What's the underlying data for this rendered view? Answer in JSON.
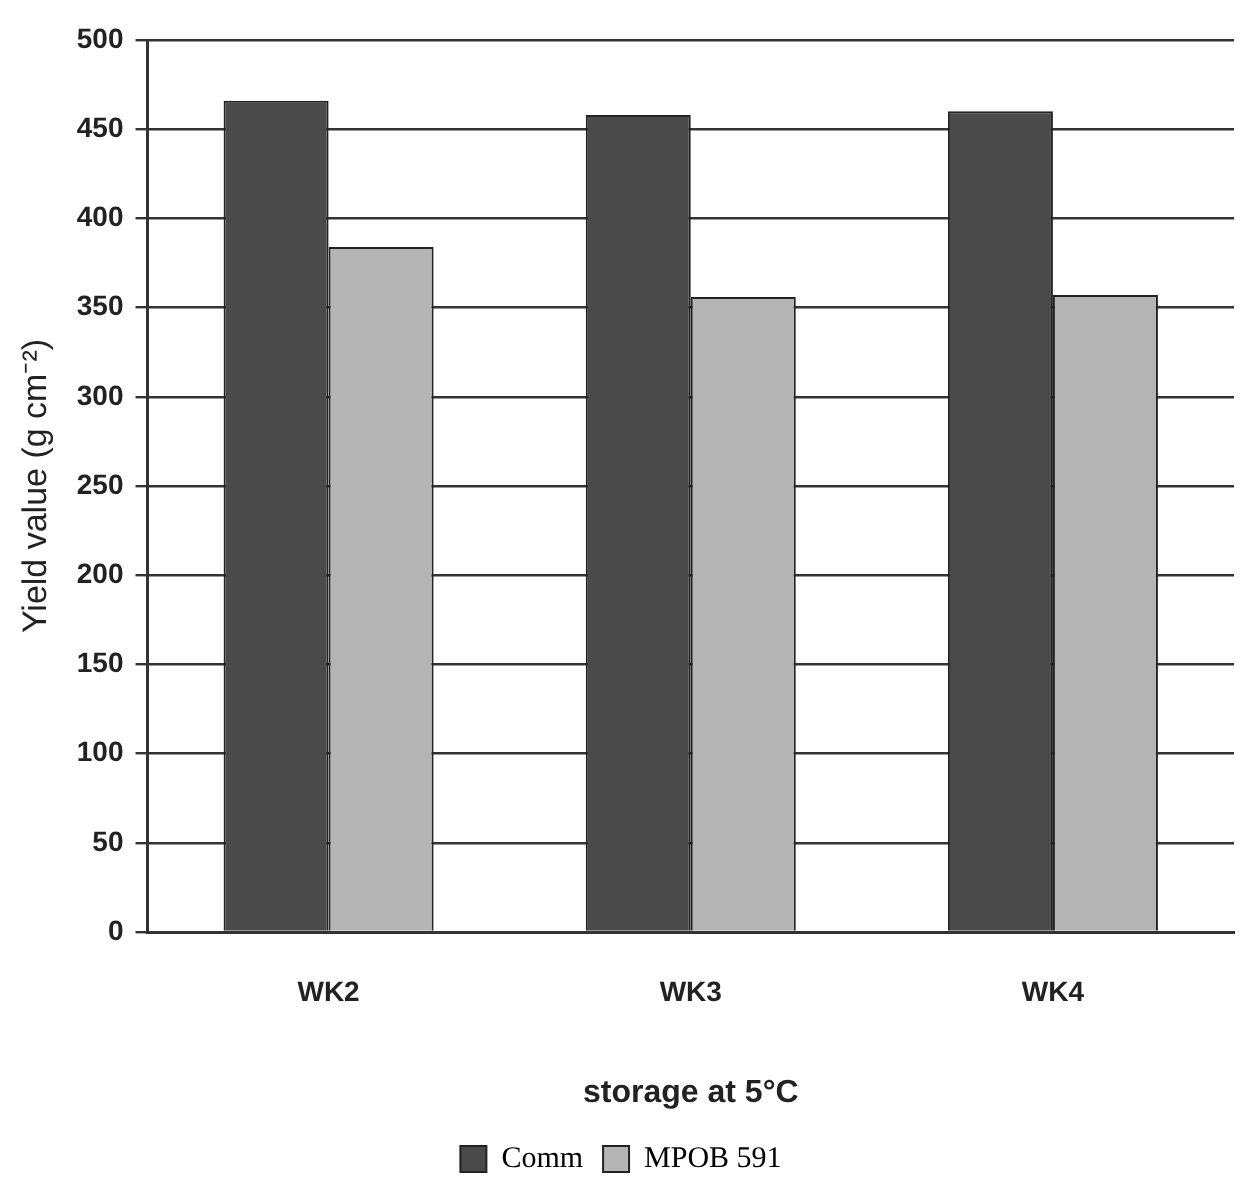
{
  "chart_data": {
    "type": "bar",
    "xlabel": "storage at 5°C",
    "ylabel": "Yield value (g cm⁻²)",
    "categories": [
      "WK2",
      "WK3",
      "WK4"
    ],
    "series": [
      {
        "name": "Comm",
        "color": "#4a4a4a",
        "values": [
          466,
          458,
          460
        ]
      },
      {
        "name": "MPOB 591",
        "color": "#b4b4b4",
        "values": [
          384,
          356,
          357
        ]
      }
    ],
    "ylim": [
      0,
      500
    ],
    "yticks": [
      0,
      50,
      100,
      150,
      200,
      250,
      300,
      350,
      400,
      450,
      500
    ],
    "grid": "y",
    "legend": "bottom"
  }
}
